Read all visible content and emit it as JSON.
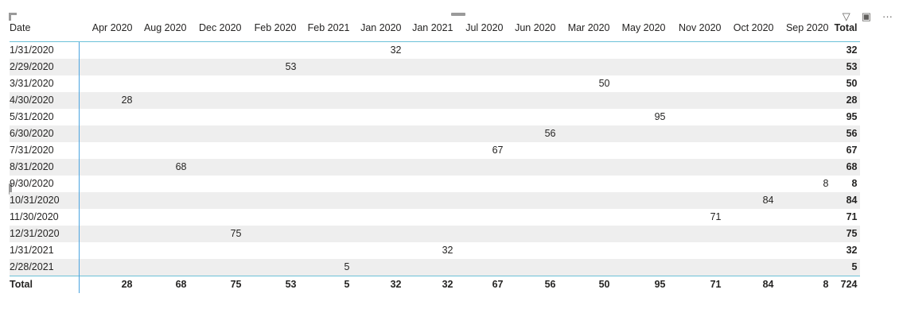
{
  "header": {
    "icons": [
      "filter-icon",
      "focus-mode-icon",
      "more-options-icon"
    ]
  },
  "table": {
    "row_header": "Date",
    "columns": [
      "Apr 2020",
      "Aug 2020",
      "Dec 2020",
      "Feb 2020",
      "Feb 2021",
      "Jan 2020",
      "Jan 2021",
      "Jul 2020",
      "Jun 2020",
      "Mar 2020",
      "May 2020",
      "Nov 2020",
      "Oct 2020",
      "Sep 2020"
    ],
    "total_label": "Total",
    "rows": [
      {
        "date": "1/31/2020",
        "cells": [
          "",
          "",
          "",
          "",
          "",
          "32",
          "",
          "",
          "",
          "",
          "",
          "",
          "",
          ""
        ],
        "total": "32"
      },
      {
        "date": "2/29/2020",
        "cells": [
          "",
          "",
          "",
          "53",
          "",
          "",
          "",
          "",
          "",
          "",
          "",
          "",
          "",
          ""
        ],
        "total": "53"
      },
      {
        "date": "3/31/2020",
        "cells": [
          "",
          "",
          "",
          "",
          "",
          "",
          "",
          "",
          "",
          "50",
          "",
          "",
          "",
          ""
        ],
        "total": "50"
      },
      {
        "date": "4/30/2020",
        "cells": [
          "28",
          "",
          "",
          "",
          "",
          "",
          "",
          "",
          "",
          "",
          "",
          "",
          "",
          ""
        ],
        "total": "28"
      },
      {
        "date": "5/31/2020",
        "cells": [
          "",
          "",
          "",
          "",
          "",
          "",
          "",
          "",
          "",
          "",
          "95",
          "",
          "",
          ""
        ],
        "total": "95"
      },
      {
        "date": "6/30/2020",
        "cells": [
          "",
          "",
          "",
          "",
          "",
          "",
          "",
          "",
          "56",
          "",
          "",
          "",
          "",
          ""
        ],
        "total": "56"
      },
      {
        "date": "7/31/2020",
        "cells": [
          "",
          "",
          "",
          "",
          "",
          "",
          "",
          "67",
          "",
          "",
          "",
          "",
          "",
          ""
        ],
        "total": "67"
      },
      {
        "date": "8/31/2020",
        "cells": [
          "",
          "68",
          "",
          "",
          "",
          "",
          "",
          "",
          "",
          "",
          "",
          "",
          "",
          ""
        ],
        "total": "68"
      },
      {
        "date": "9/30/2020",
        "cells": [
          "",
          "",
          "",
          "",
          "",
          "",
          "",
          "",
          "",
          "",
          "",
          "",
          "",
          "8"
        ],
        "total": "8"
      },
      {
        "date": "10/31/2020",
        "cells": [
          "",
          "",
          "",
          "",
          "",
          "",
          "",
          "",
          "",
          "",
          "",
          "",
          "84",
          ""
        ],
        "total": "84"
      },
      {
        "date": "11/30/2020",
        "cells": [
          "",
          "",
          "",
          "",
          "",
          "",
          "",
          "",
          "",
          "",
          "",
          "71",
          "",
          ""
        ],
        "total": "71"
      },
      {
        "date": "12/31/2020",
        "cells": [
          "",
          "",
          "75",
          "",
          "",
          "",
          "",
          "",
          "",
          "",
          "",
          "",
          "",
          ""
        ],
        "total": "75"
      },
      {
        "date": "1/31/2021",
        "cells": [
          "",
          "",
          "",
          "",
          "",
          "",
          "32",
          "",
          "",
          "",
          "",
          "",
          "",
          ""
        ],
        "total": "32"
      },
      {
        "date": "2/28/2021",
        "cells": [
          "",
          "",
          "",
          "",
          "5",
          "",
          "",
          "",
          "",
          "",
          "",
          "",
          "",
          ""
        ],
        "total": "5"
      }
    ],
    "totals_row": {
      "label": "Total",
      "cells": [
        "28",
        "68",
        "75",
        "53",
        "5",
        "32",
        "32",
        "67",
        "56",
        "50",
        "95",
        "71",
        "84",
        "8"
      ],
      "total": "724"
    }
  }
}
